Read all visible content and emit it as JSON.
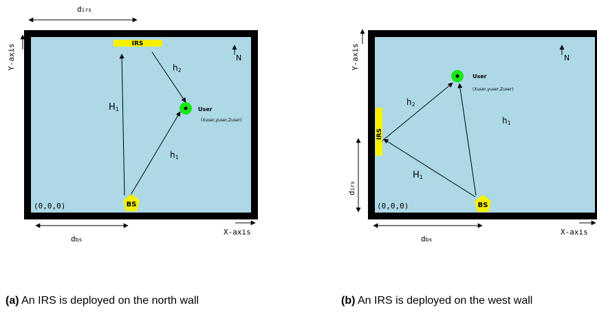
{
  "colors": {
    "room_fill": "#add8e6",
    "wall": "#000000",
    "irs": "#f5f000",
    "bs": "#f5f000",
    "user_ring": "#19e619"
  },
  "panel_a": {
    "d_irs": "d",
    "d_irs_sub": "irs",
    "y_axis": "Y-axis",
    "x_axis": "X-axis",
    "north": "N",
    "irs_label": "IRS",
    "h2": "h",
    "h2_sub": "2",
    "H1": "H",
    "H1_sub": "1",
    "h1": "h",
    "h1_sub": "1",
    "user_title": "User",
    "user_coords": "(Xuser,yuser,Zuser)",
    "origin": "(0,0,0)",
    "bs_label": "BS",
    "d_bs": "d",
    "d_bs_sub": "bs",
    "caption_prefix": "(a)",
    "caption_text": "An IRS is deployed on the north wall"
  },
  "panel_b": {
    "y_axis": "Y-axis",
    "x_axis": "X-axis",
    "north": "N",
    "user_title": "User",
    "user_coords": "(Xuser,yuser,Zuser)",
    "h2": "h",
    "h2_sub": "2",
    "h1": "h",
    "h1_sub": "1",
    "H1": "H",
    "H1_sub": "1",
    "irs_label": "IRS",
    "d_irs": "d",
    "d_irs_sub": "irs",
    "origin": "(0,0,0)",
    "bs_label": "BS",
    "d_bs": "d",
    "d_bs_sub": "bs",
    "caption_prefix": "(b)",
    "caption_text": "An IRS is deployed on the west wall"
  }
}
